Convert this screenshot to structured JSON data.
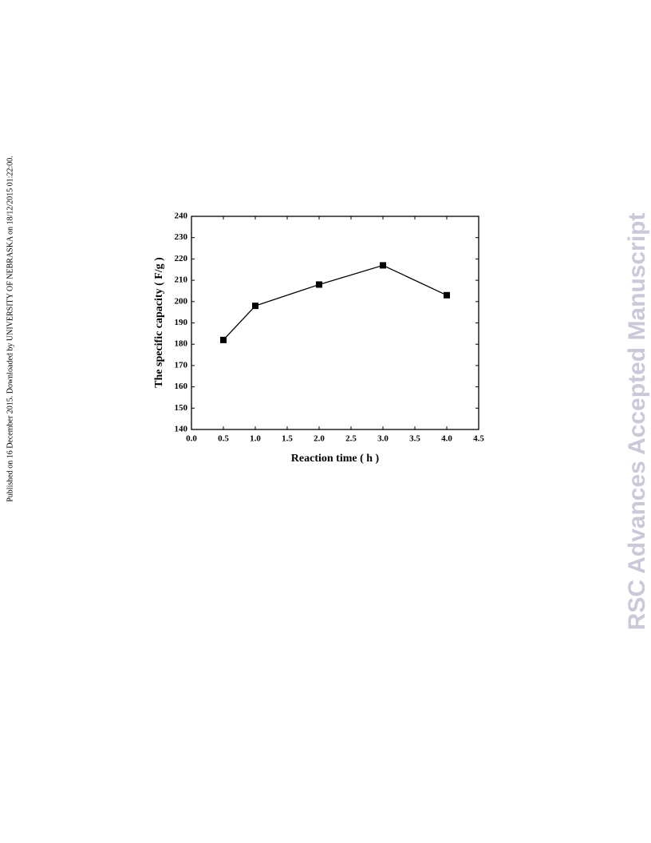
{
  "side_note": "Published on 16 December 2015. Downloaded by UNIVERSITY OF NEBRASKA on 18/12/2015 01:22:00.",
  "watermark": "RSC Advances Accepted Manuscript",
  "chart_data": {
    "type": "line",
    "x_label": "Reaction time ( h )",
    "y_label": "The specific capacity ( F/g )",
    "x": [
      0.5,
      1.0,
      2.0,
      3.0,
      4.0
    ],
    "series": [
      {
        "color": "#000000",
        "values": [
          182,
          198,
          208,
          217,
          203
        ]
      }
    ],
    "xlim": [
      0,
      4.5
    ],
    "xticks": [
      {
        "value": 0,
        "label": "0.0"
      },
      0.5,
      {
        "value": 1,
        "label": "1.0"
      },
      1.5,
      {
        "value": 2,
        "label": "2.0"
      },
      2.5,
      {
        "value": 3,
        "label": "3.0"
      },
      3.5,
      {
        "value": 4,
        "label": "4.0"
      },
      4.5
    ],
    "ylim": [
      140,
      240
    ],
    "yticks": [
      140,
      150,
      160,
      170,
      180,
      190,
      200,
      210,
      220,
      230,
      240
    ],
    "grid": false
  }
}
